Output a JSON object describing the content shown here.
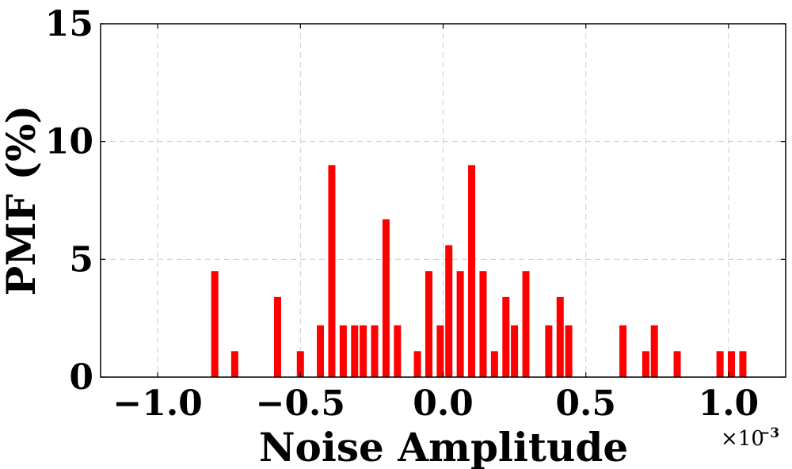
{
  "chart_data": {
    "type": "bar",
    "title": "",
    "xlabel": "Noise Amplitude",
    "ylabel": "PMF (%)",
    "x_scale_label": "×10",
    "x_scale_exponent": "−3",
    "xlim": [
      -1.2,
      1.2
    ],
    "ylim": [
      0,
      15
    ],
    "xticks": [
      -1.0,
      -0.5,
      0.0,
      0.5,
      1.0
    ],
    "xtick_labels": [
      "−1.0",
      "−0.5",
      "0.0",
      "0.5",
      "1.0"
    ],
    "yticks": [
      0,
      5,
      10,
      15
    ],
    "ytick_labels": [
      "0",
      "5",
      "10",
      "15"
    ],
    "grid": true,
    "bar_color": "#ff0000",
    "bar_width": 0.025,
    "x": [
      -0.8,
      -0.73,
      -0.58,
      -0.5,
      -0.43,
      -0.39,
      -0.35,
      -0.31,
      -0.28,
      -0.24,
      -0.2,
      -0.16,
      -0.09,
      -0.05,
      -0.01,
      0.02,
      0.06,
      0.1,
      0.14,
      0.18,
      0.22,
      0.25,
      0.29,
      0.37,
      0.41,
      0.44,
      0.63,
      0.71,
      0.74,
      0.82,
      0.97,
      1.01,
      1.05
    ],
    "values": [
      4.5,
      1.1,
      3.4,
      1.1,
      2.2,
      9.0,
      2.2,
      2.2,
      2.2,
      2.2,
      6.7,
      2.2,
      1.1,
      4.5,
      2.2,
      5.6,
      4.5,
      9.0,
      4.5,
      1.1,
      3.4,
      2.2,
      4.5,
      2.2,
      3.4,
      2.2,
      2.2,
      1.1,
      2.2,
      1.1,
      1.1,
      1.1,
      1.1
    ]
  }
}
